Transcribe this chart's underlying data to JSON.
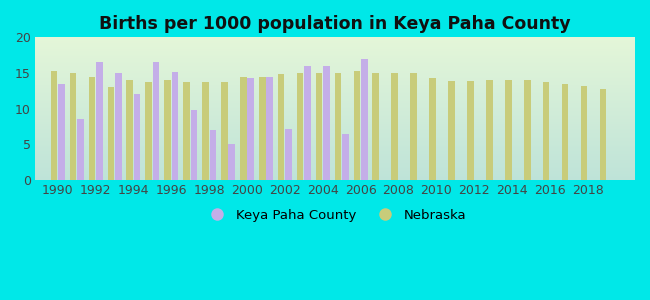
{
  "title": "Births per 1000 population in Keya Paha County",
  "keya_paha": {
    "1990": 13.5,
    "1991": 8.5,
    "1992": 16.5,
    "1993": 15.0,
    "1994": 12.0,
    "1995": 16.5,
    "1996": 15.2,
    "1997": 9.8,
    "1998": 7.0,
    "1999": 5.0,
    "2000": 14.3,
    "2001": 14.5,
    "2002": 7.2,
    "2003": 16.0,
    "2004": 16.0,
    "2005": 6.5,
    "2006": 17.0
  },
  "nebraska": {
    "1990": 15.3,
    "1991": 15.0,
    "1992": 14.5,
    "1993": 13.0,
    "1994": 14.0,
    "1995": 13.8,
    "1996": 14.0,
    "1997": 13.8,
    "1998": 13.7,
    "1999": 13.8,
    "2000": 14.4,
    "2001": 14.4,
    "2002": 14.8,
    "2003": 15.0,
    "2004": 15.0,
    "2005": 15.0,
    "2006": 15.3,
    "2007": 15.0,
    "2008": 15.0,
    "2009": 15.0,
    "2010": 14.3,
    "2011": 13.9,
    "2012": 13.9,
    "2013": 14.0,
    "2014": 14.0,
    "2015": 14.0,
    "2016": 13.8,
    "2017": 13.5,
    "2018": 13.2,
    "2019": 12.7
  },
  "keya_color": "#c4aee8",
  "nebraska_color": "#c8cc7a",
  "background_color": "#00e8e8",
  "plot_bg_color": "#e0f5ec",
  "ylabel_max": 20,
  "yticks": [
    0,
    5,
    10,
    15,
    20
  ],
  "bar_width": 0.35,
  "legend_keya": "Keya Paha County",
  "legend_nebraska": "Nebraska"
}
